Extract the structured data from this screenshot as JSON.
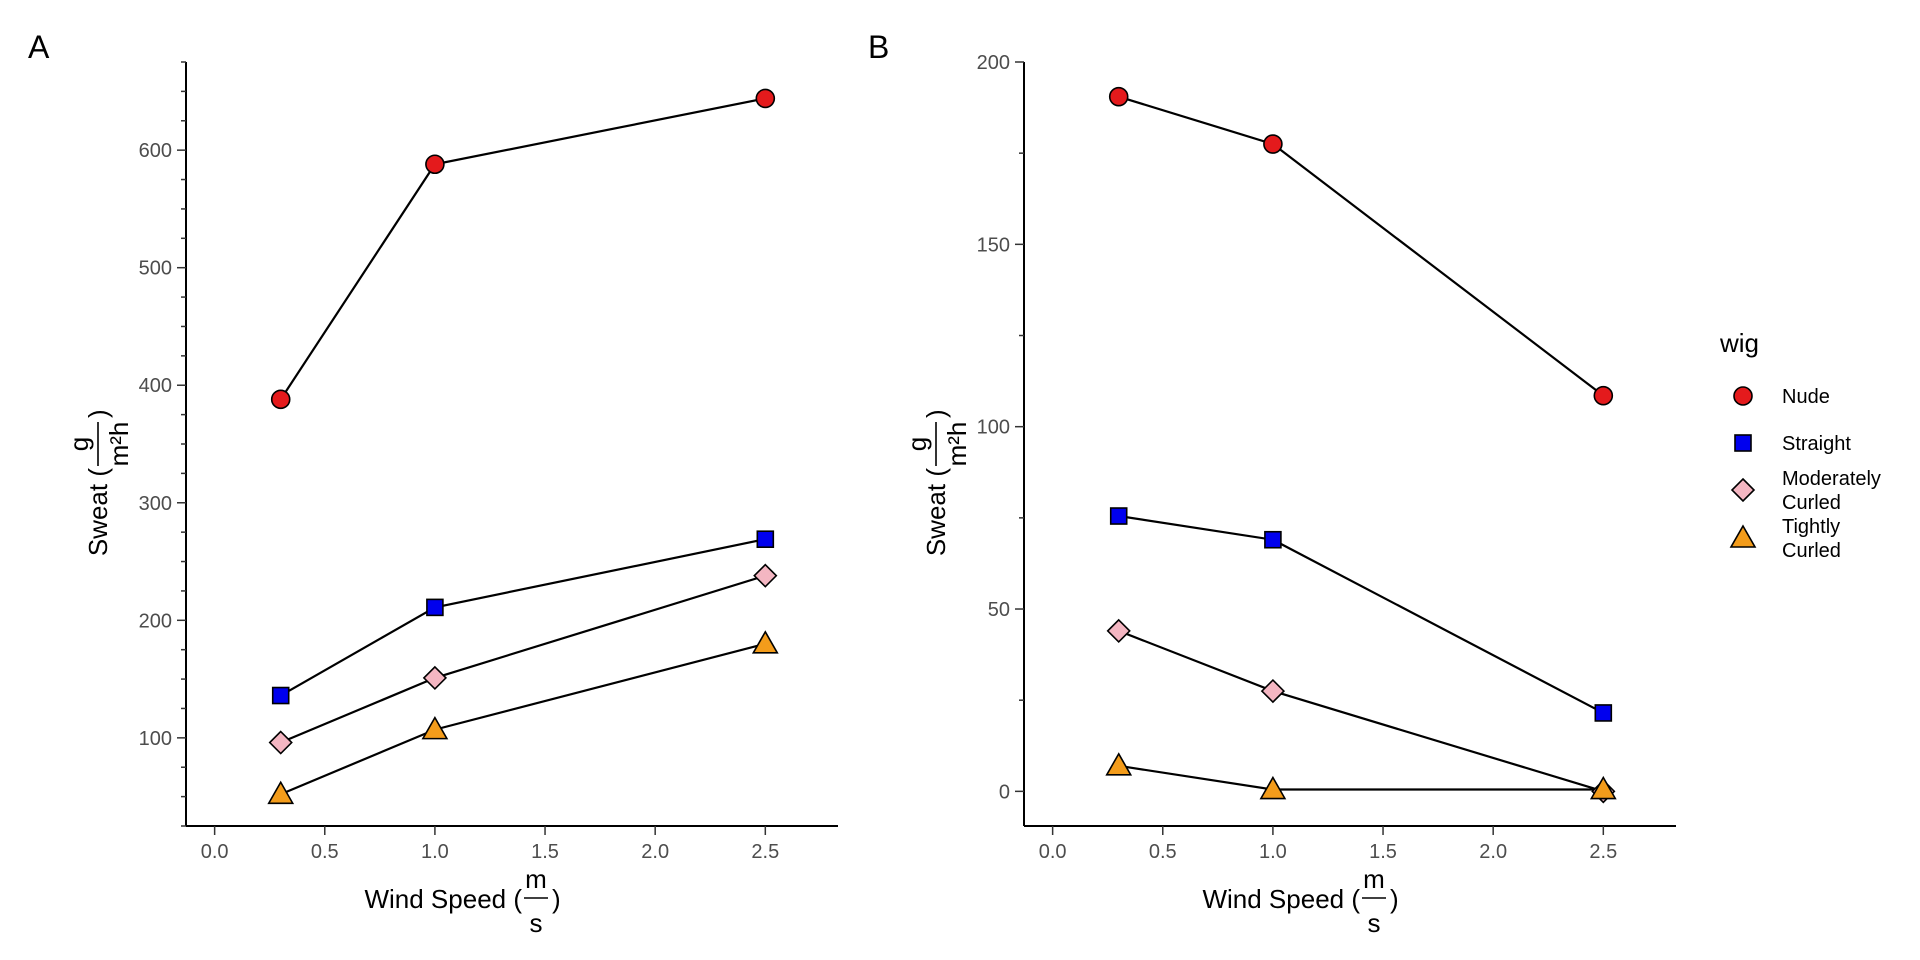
{
  "chart_data": [
    {
      "panel": "A",
      "type": "line",
      "x": [
        0.3,
        1.0,
        2.5
      ],
      "xlabel": "Wind Speed (",
      "xlabel_unit_num": "m",
      "xlabel_unit_den": "s",
      "xlabel_close": ")",
      "ylabel": "Sweat (",
      "ylabel_unit_num": "g",
      "ylabel_unit_den": "m²h",
      "ylabel_close": ")",
      "xlim": [
        -0.13,
        2.83
      ],
      "ylim": [
        25,
        675
      ],
      "xticks": [
        0.0,
        0.5,
        1.0,
        1.5,
        2.0,
        2.5
      ],
      "xtick_labels": [
        "0.0",
        "0.5",
        "1.0",
        "1.5",
        "2.0",
        "2.5"
      ],
      "yticks": [
        100,
        200,
        300,
        400,
        500,
        600
      ],
      "ytick_labels": [
        "100",
        "200",
        "300",
        "400",
        "500",
        "600"
      ],
      "yminor_step": 25,
      "grid": false,
      "series": [
        {
          "name": "Nude",
          "values": [
            388,
            588,
            644
          ]
        },
        {
          "name": "Straight",
          "values": [
            136,
            211,
            269
          ]
        },
        {
          "name": "Moderately Curled",
          "values": [
            96,
            151,
            238
          ]
        },
        {
          "name": "Tightly Curled",
          "values": [
            52,
            107,
            180
          ]
        }
      ]
    },
    {
      "panel": "B",
      "type": "line",
      "x": [
        0.3,
        1.0,
        2.5
      ],
      "xlabel": "Wind Speed (",
      "xlabel_unit_num": "m",
      "xlabel_unit_den": "s",
      "xlabel_close": ")",
      "ylabel": "Sweat (",
      "ylabel_unit_num": "g",
      "ylabel_unit_den": "m²h",
      "ylabel_close": ")",
      "xlim": [
        -0.13,
        2.83
      ],
      "ylim": [
        -9.5,
        200
      ],
      "xticks": [
        0.0,
        0.5,
        1.0,
        1.5,
        2.0,
        2.5
      ],
      "xtick_labels": [
        "0.0",
        "0.5",
        "1.0",
        "1.5",
        "2.0",
        "2.5"
      ],
      "yticks": [
        0,
        50,
        100,
        150,
        200
      ],
      "ytick_labels": [
        "0",
        "50",
        "100",
        "150",
        "200"
      ],
      "yminor_step": 25,
      "grid": false,
      "series": [
        {
          "name": "Nude",
          "values": [
            190.5,
            177.5,
            108.5
          ]
        },
        {
          "name": "Straight",
          "values": [
            75.5,
            69,
            21.5
          ]
        },
        {
          "name": "Moderately Curled",
          "values": [
            44,
            27.5,
            0
          ]
        },
        {
          "name": "Tightly Curled",
          "values": [
            7,
            0.5,
            0.5
          ]
        }
      ]
    }
  ],
  "legend": {
    "title": "wig",
    "placement": "right",
    "items": [
      {
        "label_lines": [
          "Nude"
        ],
        "shape": "circle",
        "color": "#e41a1c"
      },
      {
        "label_lines": [
          "Straight"
        ],
        "shape": "square",
        "color": "#0000ee"
      },
      {
        "label_lines": [
          "Moderately",
          "Curled"
        ],
        "shape": "diamond",
        "color": "#f4b6c2"
      },
      {
        "label_lines": [
          "Tightly",
          "Curled"
        ],
        "shape": "triangle",
        "color": "#f39c1b"
      }
    ]
  },
  "panel_tags": [
    "A",
    "B"
  ]
}
